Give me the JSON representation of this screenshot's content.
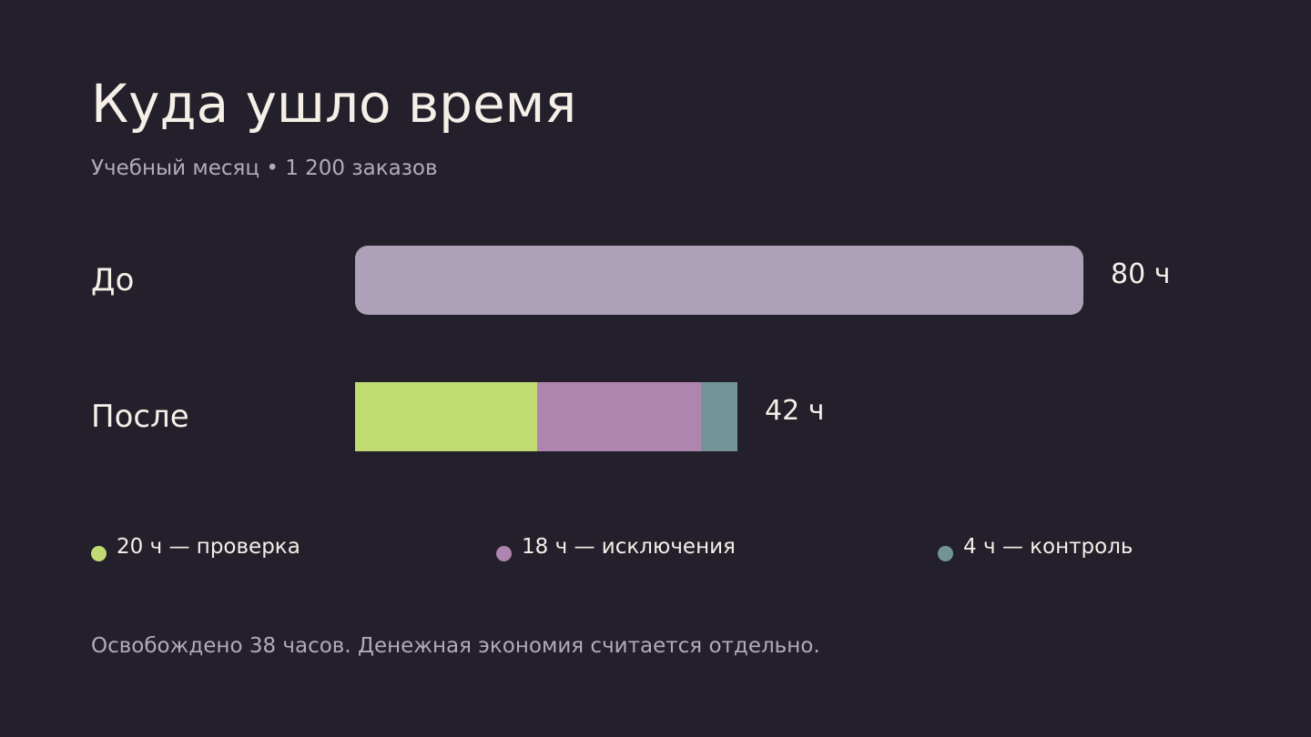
{
  "title": "Куда ушло время",
  "subtitle": "Учебный месяц • 1 200 заказов",
  "chart_data": {
    "type": "bar",
    "orientation": "horizontal",
    "stacked": true,
    "unit": "ч",
    "xlim": [
      0,
      80
    ],
    "grid": false,
    "legend_position": "bottom",
    "categories": [
      "До",
      "После"
    ],
    "bars": [
      {
        "category": "До",
        "total": 80,
        "total_label": "80 ч",
        "segments": [
          {
            "value": 80,
            "color": "#ada0b9"
          }
        ]
      },
      {
        "category": "После",
        "total": 42,
        "total_label": "42 ч",
        "segments": [
          {
            "name": "проверка",
            "value": 20,
            "color": "#c1db73"
          },
          {
            "name": "исключения",
            "value": 18,
            "color": "#ae85ae"
          },
          {
            "name": "контроль",
            "value": 4,
            "color": "#729496"
          }
        ]
      }
    ]
  },
  "legend": {
    "items": [
      {
        "label": "20 ч — проверка",
        "color": "#c1db73"
      },
      {
        "label": "18 ч — исключения",
        "color": "#ae85ae"
      },
      {
        "label": "4 ч — контроль",
        "color": "#729496"
      }
    ]
  },
  "footnote": "Освобождено 38 часов. Денежная экономия считается отдельно."
}
